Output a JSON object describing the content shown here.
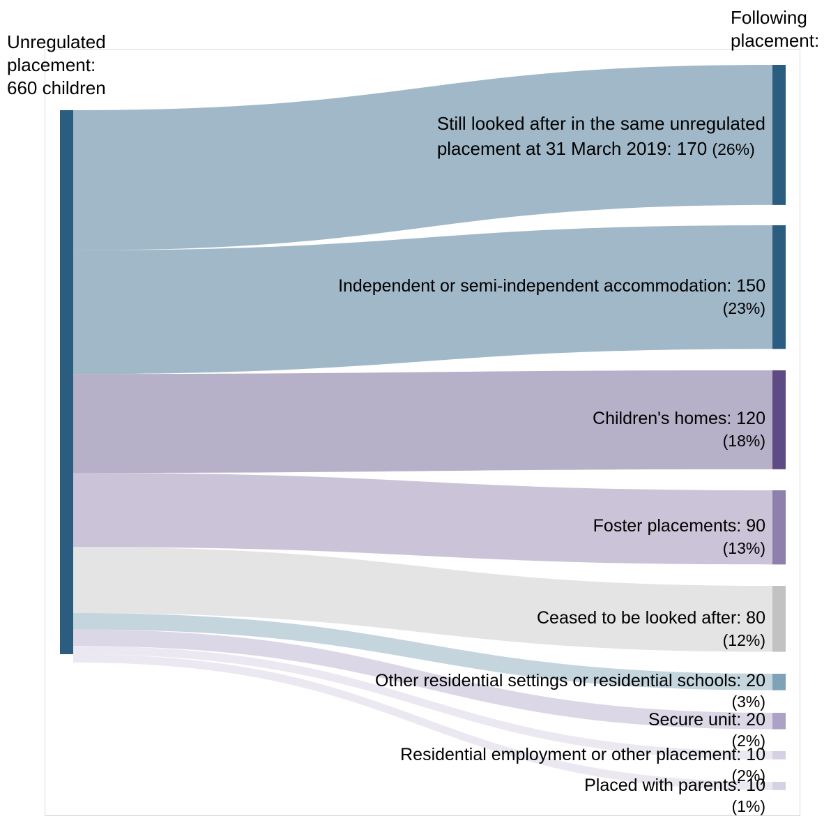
{
  "chart_data": {
    "type": "sankey",
    "source": {
      "header_lines": [
        "Unregulated",
        "placement:",
        "660 children"
      ],
      "total": 660,
      "color": "#2b5d80"
    },
    "target_header_lines": [
      "Following",
      "placement:"
    ],
    "flows": [
      {
        "label_lines": [
          "Still looked after in the same unregulated",
          "placement at 31 March 2019: 170"
        ],
        "value": 170,
        "pct": "(26%)",
        "node_color": "#2b5d80",
        "band_color": "#a0b8c8"
      },
      {
        "label_lines": [
          "Independent or semi-independent accommodation: 150"
        ],
        "value": 150,
        "pct": "(23%)",
        "node_color": "#2b5d80",
        "band_color": "#a0b8c8"
      },
      {
        "label_lines": [
          "Children's homes: 120"
        ],
        "value": 120,
        "pct": "(18%)",
        "node_color": "#5e4a84",
        "band_color": "#b7b0c9"
      },
      {
        "label_lines": [
          "Foster placements: 90"
        ],
        "value": 90,
        "pct": "(13%)",
        "node_color": "#8e7fad",
        "band_color": "#cbc4d8"
      },
      {
        "label_lines": [
          "Ceased to be looked after: 80"
        ],
        "value": 80,
        "pct": "(12%)",
        "node_color": "#c2c2c2",
        "band_color": "#e4e4e4"
      },
      {
        "label_lines": [
          "Other residential settings or residential schools: 20"
        ],
        "value": 20,
        "pct": "(3%)",
        "node_color": "#7ea2b8",
        "band_color": "#c4d5de"
      },
      {
        "label_lines": [
          "Secure unit: 20"
        ],
        "value": 20,
        "pct": "(2%)",
        "node_color": "#aca2c6",
        "band_color": "#dcd7e6"
      },
      {
        "label_lines": [
          "Residential employment or other placement: 10"
        ],
        "value": 10,
        "pct": "(2%)",
        "node_color": "#d6d1e2",
        "band_color": "#ebe8f1"
      },
      {
        "label_lines": [
          "Placed with parents: 10"
        ],
        "value": 10,
        "pct": "(1%)",
        "node_color": "#d6d1e2",
        "band_color": "#ebe8f1"
      }
    ]
  }
}
